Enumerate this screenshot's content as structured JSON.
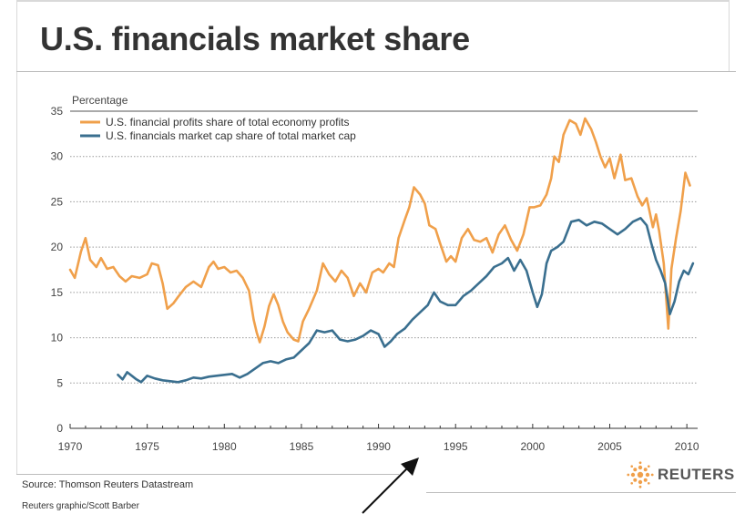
{
  "header": {
    "title": "U.S. financials market share"
  },
  "footer": {
    "source": "Source: Thomson Reuters Datastream",
    "credit": "Reuters graphic/Scott Barber",
    "brand": "REUTERS"
  },
  "colors": {
    "profits_series": "#f0a04b",
    "marketcap_series": "#3a6f8f",
    "title_text": "#333333"
  },
  "chart_data": {
    "type": "line",
    "title": "U.S. financials market share",
    "ylabel": "Percentage",
    "xlabel": "",
    "ylim": [
      0,
      35
    ],
    "xlim": [
      1970,
      2010.7
    ],
    "yticks": [
      0,
      5,
      10,
      15,
      20,
      25,
      30,
      35
    ],
    "xticks": [
      1970,
      1975,
      1980,
      1985,
      1990,
      1995,
      2000,
      2005,
      2010
    ],
    "grid": "horizontal dotted",
    "legend": "top-left",
    "series": [
      {
        "name": "U.S. financial profits share of total economy profits",
        "color": "#f0a04b",
        "points": [
          [
            1970,
            17.5
          ],
          [
            1970.3,
            16.6
          ],
          [
            1970.7,
            19.5
          ],
          [
            1971.0,
            21.0
          ],
          [
            1971.3,
            18.6
          ],
          [
            1971.7,
            17.8
          ],
          [
            1972.0,
            18.8
          ],
          [
            1972.4,
            17.6
          ],
          [
            1972.8,
            17.8
          ],
          [
            1973.2,
            16.8
          ],
          [
            1973.6,
            16.2
          ],
          [
            1974.0,
            16.8
          ],
          [
            1974.5,
            16.6
          ],
          [
            1975.0,
            17.0
          ],
          [
            1975.3,
            18.2
          ],
          [
            1975.7,
            18.0
          ],
          [
            1976.0,
            16.0
          ],
          [
            1976.3,
            13.2
          ],
          [
            1976.7,
            13.8
          ],
          [
            1977.0,
            14.5
          ],
          [
            1977.5,
            15.6
          ],
          [
            1978.0,
            16.2
          ],
          [
            1978.5,
            15.6
          ],
          [
            1979.0,
            17.8
          ],
          [
            1979.3,
            18.4
          ],
          [
            1979.6,
            17.6
          ],
          [
            1980.0,
            17.8
          ],
          [
            1980.4,
            17.2
          ],
          [
            1980.8,
            17.4
          ],
          [
            1981.2,
            16.6
          ],
          [
            1981.6,
            15.2
          ],
          [
            1981.9,
            12.0
          ],
          [
            1982.1,
            10.6
          ],
          [
            1982.3,
            9.5
          ],
          [
            1982.6,
            11.2
          ],
          [
            1982.9,
            13.5
          ],
          [
            1983.2,
            14.8
          ],
          [
            1983.5,
            13.6
          ],
          [
            1983.8,
            11.8
          ],
          [
            1984.1,
            10.6
          ],
          [
            1984.5,
            9.8
          ],
          [
            1984.8,
            9.6
          ],
          [
            1985.1,
            11.8
          ],
          [
            1985.5,
            13.2
          ],
          [
            1986.0,
            15.2
          ],
          [
            1986.4,
            18.2
          ],
          [
            1986.8,
            17.0
          ],
          [
            1987.2,
            16.2
          ],
          [
            1987.6,
            17.4
          ],
          [
            1988.0,
            16.6
          ],
          [
            1988.4,
            14.6
          ],
          [
            1988.8,
            16.0
          ],
          [
            1989.2,
            15.0
          ],
          [
            1989.6,
            17.2
          ],
          [
            1990.0,
            17.6
          ],
          [
            1990.3,
            17.2
          ],
          [
            1990.7,
            18.2
          ],
          [
            1991.0,
            17.8
          ],
          [
            1991.3,
            21.0
          ],
          [
            1991.7,
            23.0
          ],
          [
            1992.0,
            24.4
          ],
          [
            1992.3,
            26.6
          ],
          [
            1992.7,
            25.8
          ],
          [
            1993.0,
            24.8
          ],
          [
            1993.3,
            22.4
          ],
          [
            1993.7,
            22.0
          ],
          [
            1994.0,
            20.4
          ],
          [
            1994.4,
            18.4
          ],
          [
            1994.7,
            19.0
          ],
          [
            1995.0,
            18.4
          ],
          [
            1995.4,
            21.0
          ],
          [
            1995.8,
            22.0
          ],
          [
            1996.2,
            20.8
          ],
          [
            1996.6,
            20.6
          ],
          [
            1997.0,
            21.0
          ],
          [
            1997.4,
            19.4
          ],
          [
            1997.8,
            21.4
          ],
          [
            1998.2,
            22.4
          ],
          [
            1998.6,
            20.8
          ],
          [
            1999.0,
            19.6
          ],
          [
            1999.4,
            21.4
          ],
          [
            1999.8,
            24.4
          ],
          [
            2000.1,
            24.4
          ],
          [
            2000.5,
            24.6
          ],
          [
            2000.9,
            25.8
          ],
          [
            2001.2,
            27.6
          ],
          [
            2001.4,
            30.0
          ],
          [
            2001.7,
            29.4
          ],
          [
            2002.0,
            32.4
          ],
          [
            2002.4,
            34.0
          ],
          [
            2002.8,
            33.6
          ],
          [
            2003.1,
            32.4
          ],
          [
            2003.4,
            34.2
          ],
          [
            2003.8,
            33.0
          ],
          [
            2004.1,
            31.6
          ],
          [
            2004.4,
            30.0
          ],
          [
            2004.7,
            28.8
          ],
          [
            2005.0,
            29.8
          ],
          [
            2005.3,
            27.6
          ],
          [
            2005.7,
            30.2
          ],
          [
            2006.0,
            27.4
          ],
          [
            2006.4,
            27.6
          ],
          [
            2006.8,
            25.6
          ],
          [
            2007.1,
            24.6
          ],
          [
            2007.4,
            25.4
          ],
          [
            2007.8,
            22.2
          ],
          [
            2008.0,
            23.6
          ],
          [
            2008.2,
            21.8
          ],
          [
            2008.5,
            18.2
          ],
          [
            2008.8,
            11.0
          ],
          [
            2009.0,
            17.6
          ],
          [
            2009.3,
            21.0
          ],
          [
            2009.6,
            24.0
          ],
          [
            2009.9,
            28.2
          ],
          [
            2010.2,
            26.8
          ]
        ]
      },
      {
        "name": "U.S. financials market cap share of total market cap",
        "color": "#3a6f8f",
        "points": [
          [
            1973.1,
            5.9
          ],
          [
            1973.4,
            5.4
          ],
          [
            1973.7,
            6.2
          ],
          [
            1974.0,
            5.8
          ],
          [
            1974.3,
            5.4
          ],
          [
            1974.6,
            5.1
          ],
          [
            1975.0,
            5.8
          ],
          [
            1975.5,
            5.5
          ],
          [
            1976.0,
            5.3
          ],
          [
            1976.5,
            5.2
          ],
          [
            1977.0,
            5.1
          ],
          [
            1977.5,
            5.3
          ],
          [
            1978.0,
            5.6
          ],
          [
            1978.5,
            5.5
          ],
          [
            1979.0,
            5.7
          ],
          [
            1979.5,
            5.8
          ],
          [
            1980.0,
            5.9
          ],
          [
            1980.5,
            6.0
          ],
          [
            1981.0,
            5.6
          ],
          [
            1981.5,
            6.0
          ],
          [
            1982.0,
            6.6
          ],
          [
            1982.5,
            7.2
          ],
          [
            1983.0,
            7.4
          ],
          [
            1983.5,
            7.2
          ],
          [
            1984.0,
            7.6
          ],
          [
            1984.5,
            7.8
          ],
          [
            1985.0,
            8.6
          ],
          [
            1985.5,
            9.4
          ],
          [
            1986.0,
            10.8
          ],
          [
            1986.5,
            10.6
          ],
          [
            1987.0,
            10.8
          ],
          [
            1987.5,
            9.8
          ],
          [
            1988.0,
            9.6
          ],
          [
            1988.5,
            9.8
          ],
          [
            1989.0,
            10.2
          ],
          [
            1989.5,
            10.8
          ],
          [
            1990.0,
            10.4
          ],
          [
            1990.4,
            9.0
          ],
          [
            1990.8,
            9.6
          ],
          [
            1991.2,
            10.4
          ],
          [
            1991.7,
            11.0
          ],
          [
            1992.2,
            12.0
          ],
          [
            1992.7,
            12.8
          ],
          [
            1993.2,
            13.6
          ],
          [
            1993.6,
            15.0
          ],
          [
            1994.0,
            14.0
          ],
          [
            1994.5,
            13.6
          ],
          [
            1995.0,
            13.6
          ],
          [
            1995.5,
            14.6
          ],
          [
            1996.0,
            15.2
          ],
          [
            1996.5,
            16.0
          ],
          [
            1997.0,
            16.8
          ],
          [
            1997.5,
            17.8
          ],
          [
            1998.0,
            18.2
          ],
          [
            1998.4,
            18.8
          ],
          [
            1998.8,
            17.4
          ],
          [
            1999.2,
            18.6
          ],
          [
            1999.6,
            17.4
          ],
          [
            2000.0,
            15.0
          ],
          [
            2000.3,
            13.4
          ],
          [
            2000.6,
            14.8
          ],
          [
            2000.9,
            18.2
          ],
          [
            2001.2,
            19.6
          ],
          [
            2001.6,
            20.0
          ],
          [
            2002.0,
            20.6
          ],
          [
            2002.5,
            22.8
          ],
          [
            2003.0,
            23.0
          ],
          [
            2003.5,
            22.4
          ],
          [
            2004.0,
            22.8
          ],
          [
            2004.5,
            22.6
          ],
          [
            2005.0,
            22.0
          ],
          [
            2005.5,
            21.4
          ],
          [
            2006.0,
            22.0
          ],
          [
            2006.5,
            22.8
          ],
          [
            2007.0,
            23.2
          ],
          [
            2007.4,
            22.4
          ],
          [
            2007.7,
            20.4
          ],
          [
            2008.0,
            18.6
          ],
          [
            2008.3,
            17.4
          ],
          [
            2008.6,
            16.0
          ],
          [
            2008.9,
            12.6
          ],
          [
            2009.2,
            14.0
          ],
          [
            2009.5,
            16.2
          ],
          [
            2009.8,
            17.4
          ],
          [
            2010.1,
            17.0
          ],
          [
            2010.4,
            18.2
          ]
        ]
      }
    ]
  }
}
